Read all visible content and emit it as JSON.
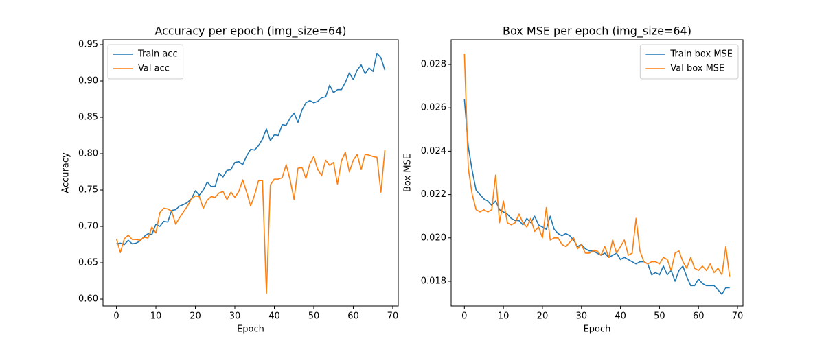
{
  "chart_data": [
    {
      "type": "line",
      "title": "Accuracy per epoch (img_size=64)",
      "x_label": "Epoch",
      "y_label": "Accuracy",
      "x": [
        0,
        1,
        2,
        3,
        4,
        5,
        6,
        7,
        8,
        9,
        10,
        11,
        12,
        13,
        14,
        15,
        16,
        17,
        18,
        19,
        20,
        21,
        22,
        23,
        24,
        25,
        26,
        27,
        28,
        29,
        30,
        31,
        32,
        33,
        34,
        35,
        36,
        37,
        38,
        39,
        40,
        41,
        42,
        43,
        44,
        45,
        46,
        47,
        48,
        49,
        50,
        51,
        52,
        53,
        54,
        55,
        56,
        57,
        58,
        59,
        60,
        61,
        62,
        63,
        64,
        65,
        66,
        67,
        68
      ],
      "series": [
        {
          "name": "Train acc",
          "color": "#1f77b4",
          "values": [
            0.676,
            0.677,
            0.675,
            0.681,
            0.676,
            0.677,
            0.68,
            0.686,
            0.69,
            0.689,
            0.703,
            0.7,
            0.707,
            0.706,
            0.722,
            0.723,
            0.728,
            0.73,
            0.733,
            0.738,
            0.749,
            0.743,
            0.75,
            0.761,
            0.755,
            0.755,
            0.773,
            0.768,
            0.777,
            0.778,
            0.788,
            0.789,
            0.785,
            0.797,
            0.806,
            0.805,
            0.811,
            0.82,
            0.834,
            0.818,
            0.826,
            0.825,
            0.84,
            0.839,
            0.849,
            0.856,
            0.843,
            0.86,
            0.87,
            0.873,
            0.87,
            0.872,
            0.877,
            0.878,
            0.894,
            0.884,
            0.888,
            0.888,
            0.898,
            0.911,
            0.902,
            0.915,
            0.922,
            0.91,
            0.918,
            0.913,
            0.938,
            0.932,
            0.915
          ]
        },
        {
          "name": "Val acc",
          "color": "#ff7f0e",
          "values": [
            0.683,
            0.664,
            0.683,
            0.688,
            0.682,
            0.682,
            0.681,
            0.685,
            0.684,
            0.699,
            0.691,
            0.719,
            0.725,
            0.724,
            0.721,
            0.703,
            0.712,
            0.72,
            0.728,
            0.738,
            0.742,
            0.741,
            0.725,
            0.736,
            0.741,
            0.74,
            0.746,
            0.748,
            0.737,
            0.747,
            0.74,
            0.748,
            0.764,
            0.747,
            0.728,
            0.743,
            0.763,
            0.763,
            0.608,
            0.757,
            0.765,
            0.765,
            0.767,
            0.785,
            0.764,
            0.737,
            0.78,
            0.781,
            0.766,
            0.786,
            0.796,
            0.778,
            0.77,
            0.791,
            0.784,
            0.788,
            0.758,
            0.79,
            0.802,
            0.775,
            0.791,
            0.799,
            0.778,
            0.799,
            0.798,
            0.796,
            0.795,
            0.747,
            0.805
          ]
        }
      ],
      "xlim": [
        -3.4,
        71.4
      ],
      "xticks": [
        0,
        10,
        20,
        30,
        40,
        50,
        60,
        70
      ],
      "ylim": [
        0.5906,
        0.9566
      ],
      "yticks": [
        {
          "value": 0.6,
          "label": "0.60"
        },
        0.65,
        {
          "value": 0.7,
          "label": "0.70"
        },
        0.75,
        {
          "value": 0.8,
          "label": "0.80"
        },
        0.85,
        {
          "value": 0.9,
          "label": "0.90"
        },
        0.95
      ],
      "legend": "upper left",
      "grid": false
    },
    {
      "type": "line",
      "title": "Box MSE per epoch (img_size=64)",
      "x_label": "Epoch",
      "y_label": "Box MSE",
      "x": [
        0,
        1,
        2,
        3,
        4,
        5,
        6,
        7,
        8,
        9,
        10,
        11,
        12,
        13,
        14,
        15,
        16,
        17,
        18,
        19,
        20,
        21,
        22,
        23,
        24,
        25,
        26,
        27,
        28,
        29,
        30,
        31,
        32,
        33,
        34,
        35,
        36,
        37,
        38,
        39,
        40,
        41,
        42,
        43,
        44,
        45,
        46,
        47,
        48,
        49,
        50,
        51,
        52,
        53,
        54,
        55,
        56,
        57,
        58,
        59,
        60,
        61,
        62,
        63,
        64,
        65,
        66,
        67,
        68
      ],
      "series": [
        {
          "name": "Train box MSE",
          "color": "#1f77b4",
          "values": [
            0.0264,
            0.0242,
            0.0231,
            0.0222,
            0.022,
            0.0218,
            0.0217,
            0.0215,
            0.0217,
            0.0213,
            0.0212,
            0.0211,
            0.0209,
            0.0208,
            0.0208,
            0.0206,
            0.0209,
            0.0207,
            0.021,
            0.0206,
            0.0205,
            0.0204,
            0.021,
            0.0204,
            0.0202,
            0.0201,
            0.0202,
            0.0201,
            0.0199,
            0.0196,
            0.0197,
            0.0195,
            0.0194,
            0.0194,
            0.0193,
            0.0192,
            0.0193,
            0.0191,
            0.0192,
            0.0193,
            0.019,
            0.0191,
            0.019,
            0.0189,
            0.0188,
            0.0189,
            0.0189,
            0.0188,
            0.0183,
            0.0184,
            0.0183,
            0.0187,
            0.0183,
            0.0185,
            0.018,
            0.0185,
            0.0187,
            0.0182,
            0.0178,
            0.0178,
            0.0181,
            0.0179,
            0.0178,
            0.0178,
            0.0178,
            0.0176,
            0.0174,
            0.0177,
            0.0177
          ]
        },
        {
          "name": "Val box MSE",
          "color": "#ff7f0e",
          "values": [
            0.0285,
            0.0232,
            0.022,
            0.0213,
            0.0212,
            0.0213,
            0.0212,
            0.0213,
            0.0229,
            0.0207,
            0.0217,
            0.0207,
            0.0206,
            0.0207,
            0.0211,
            0.0207,
            0.0205,
            0.0209,
            0.0203,
            0.0205,
            0.02,
            0.0214,
            0.0199,
            0.02,
            0.02,
            0.0197,
            0.0196,
            0.0198,
            0.02,
            0.0195,
            0.0197,
            0.0193,
            0.0193,
            0.0194,
            0.0194,
            0.0192,
            0.0196,
            0.0191,
            0.0199,
            0.0193,
            0.0196,
            0.0199,
            0.0192,
            0.0193,
            0.0209,
            0.0194,
            0.0189,
            0.0188,
            0.0189,
            0.0189,
            0.0188,
            0.0191,
            0.019,
            0.0185,
            0.0193,
            0.0194,
            0.0189,
            0.0186,
            0.0191,
            0.0186,
            0.0185,
            0.0187,
            0.0185,
            0.0188,
            0.0184,
            0.0186,
            0.0183,
            0.0196,
            0.0182
          ]
        }
      ],
      "xlim": [
        -3.4,
        71.4
      ],
      "xticks": [
        0,
        10,
        20,
        30,
        40,
        50,
        60,
        70
      ],
      "ylim": [
        0.01686,
        0.02914
      ],
      "yticks": [
        0.018,
        {
          "value": 0.02,
          "label": "0.020"
        },
        0.022,
        0.024,
        0.026,
        0.028
      ],
      "legend": "upper right",
      "grid": false
    }
  ]
}
